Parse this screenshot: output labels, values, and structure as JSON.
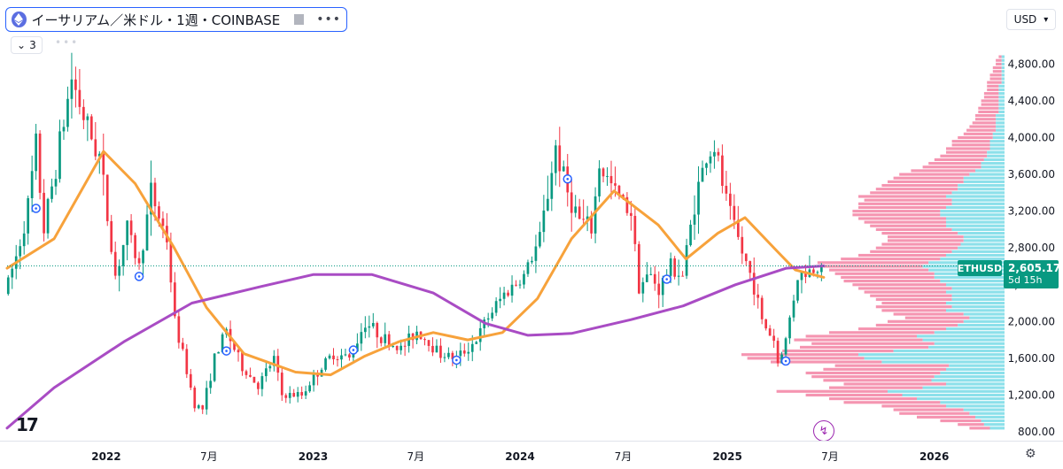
{
  "header": {
    "symbol_title": "イーサリアム／米ドル・1週・COINBASE",
    "indicator_count": "3",
    "currency": "USD"
  },
  "price_tag": {
    "symbol": "ETHUSD",
    "price": "2,605.17",
    "countdown": "5d 15h"
  },
  "colors": {
    "up": "#089981",
    "down": "#f23645",
    "ma_short": "#f7a23b",
    "ma_long": "#a94cc4",
    "vp_up": "#7fdde8",
    "vp_down": "#f48aa8",
    "accent": "#2962ff"
  },
  "chart_data": {
    "type": "candlestick",
    "interval": "1 week",
    "x_tick_labels": [
      "2022",
      "7月",
      "2023",
      "7月",
      "2024",
      "7月",
      "2025",
      "7月",
      "2026"
    ],
    "y_tick_labels": [
      "800.00",
      "1,200.00",
      "1,600.00",
      "2,000.00",
      "2,400.00",
      "2,800.00",
      "3,200.00",
      "3,600.00",
      "4,000.00",
      "4,400.00",
      "4,800.00"
    ],
    "ylim": [
      800,
      4900
    ],
    "xlim": [
      "2021-07-10",
      "2026-05-05"
    ],
    "grid": false,
    "last_price": 2605.17,
    "price_anchors": [
      [
        "2021-07-12",
        2300
      ],
      [
        "2021-08-02",
        2700
      ],
      [
        "2021-08-23",
        3250
      ],
      [
        "2021-09-06",
        3900
      ],
      [
        "2021-09-20",
        3000
      ],
      [
        "2021-10-11",
        3700
      ],
      [
        "2021-11-08",
        4650
      ],
      [
        "2021-12-06",
        4100
      ],
      [
        "2021-12-27",
        3800
      ],
      [
        "2022-01-24",
        2500
      ],
      [
        "2022-02-14",
        3000
      ],
      [
        "2022-03-07",
        2600
      ],
      [
        "2022-03-28",
        3400
      ],
      [
        "2022-04-25",
        2900
      ],
      [
        "2022-05-09",
        2000
      ],
      [
        "2022-06-13",
        1100
      ],
      [
        "2022-06-27",
        1050
      ],
      [
        "2022-07-18",
        1600
      ],
      [
        "2022-08-08",
        1900
      ],
      [
        "2022-09-05",
        1500
      ],
      [
        "2022-10-03",
        1300
      ],
      [
        "2022-10-31",
        1600
      ],
      [
        "2022-11-14",
        1200
      ],
      [
        "2022-12-19",
        1200
      ],
      [
        "2023-01-09",
        1400
      ],
      [
        "2023-02-13",
        1650
      ],
      [
        "2023-03-13",
        1600
      ],
      [
        "2023-04-10",
        2000
      ],
      [
        "2023-05-15",
        1800
      ],
      [
        "2023-06-12",
        1700
      ],
      [
        "2023-07-10",
        1900
      ],
      [
        "2023-08-21",
        1650
      ],
      [
        "2023-09-18",
        1600
      ],
      [
        "2023-10-23",
        1800
      ],
      [
        "2023-11-13",
        2050
      ],
      [
        "2023-12-11",
        2300
      ],
      [
        "2024-01-15",
        2500
      ],
      [
        "2024-02-12",
        2900
      ],
      [
        "2024-03-11",
        3900
      ],
      [
        "2024-04-01",
        3400
      ],
      [
        "2024-04-22",
        3100
      ],
      [
        "2024-05-13",
        3000
      ],
      [
        "2024-05-27",
        3700
      ],
      [
        "2024-06-24",
        3400
      ],
      [
        "2024-07-22",
        3200
      ],
      [
        "2024-08-05",
        2400
      ],
      [
        "2024-08-26",
        2500
      ],
      [
        "2024-09-09",
        2350
      ],
      [
        "2024-09-30",
        2600
      ],
      [
        "2024-10-21",
        2500
      ],
      [
        "2024-11-11",
        3300
      ],
      [
        "2024-12-02",
        3800
      ],
      [
        "2024-12-16",
        3900
      ],
      [
        "2025-01-06",
        3300
      ],
      [
        "2025-02-03",
        2750
      ],
      [
        "2025-02-24",
        2400
      ],
      [
        "2025-03-10",
        2000
      ],
      [
        "2025-03-31",
        1800
      ],
      [
        "2025-04-07",
        1550
      ],
      [
        "2025-04-21",
        1800
      ],
      [
        "2025-05-12",
        2500
      ],
      [
        "2025-06-02",
        2550
      ],
      [
        "2025-06-16",
        2605
      ]
    ],
    "series": [
      {
        "type": "line",
        "points": [
          [
            "2021-07-10",
            2580
          ],
          [
            "2021-10-01",
            2900
          ],
          [
            "2021-12-27",
            3850
          ],
          [
            "2022-02-21",
            3500
          ],
          [
            "2022-05-01",
            2800
          ],
          [
            "2022-06-27",
            2150
          ],
          [
            "2022-09-01",
            1650
          ],
          [
            "2022-12-01",
            1450
          ],
          [
            "2023-02-01",
            1420
          ],
          [
            "2023-04-01",
            1620
          ],
          [
            "2023-06-01",
            1780
          ],
          [
            "2023-08-01",
            1880
          ],
          [
            "2023-10-01",
            1800
          ],
          [
            "2023-12-01",
            1880
          ],
          [
            "2024-02-01",
            2250
          ],
          [
            "2024-04-01",
            2900
          ],
          [
            "2024-06-15",
            3420
          ],
          [
            "2024-09-01",
            3050
          ],
          [
            "2024-10-20",
            2680
          ],
          [
            "2024-12-15",
            2960
          ],
          [
            "2025-02-01",
            3130
          ],
          [
            "2025-04-01",
            2750
          ],
          [
            "2025-05-01",
            2560
          ],
          [
            "2025-06-20",
            2480
          ]
        ]
      },
      {
        "type": "line",
        "points": [
          [
            "2021-07-10",
            840
          ],
          [
            "2021-10-01",
            1280
          ],
          [
            "2022-02-01",
            1780
          ],
          [
            "2022-06-01",
            2200
          ],
          [
            "2022-10-01",
            2380
          ],
          [
            "2023-01-01",
            2510
          ],
          [
            "2023-04-15",
            2510
          ],
          [
            "2023-08-01",
            2310
          ],
          [
            "2023-11-01",
            1980
          ],
          [
            "2024-01-15",
            1850
          ],
          [
            "2024-04-01",
            1870
          ],
          [
            "2024-07-15",
            2020
          ],
          [
            "2024-10-15",
            2170
          ],
          [
            "2025-01-15",
            2400
          ],
          [
            "2025-04-15",
            2580
          ],
          [
            "2025-06-20",
            2605
          ]
        ]
      }
    ],
    "volume_profile": {
      "ylim": [
        800,
        4900
      ],
      "bins": [
        [
          820,
          0.12,
          0.05
        ],
        [
          860,
          0.16,
          0.07
        ],
        [
          900,
          0.22,
          0.08
        ],
        [
          940,
          0.3,
          0.1
        ],
        [
          980,
          0.36,
          0.12
        ],
        [
          1020,
          0.38,
          0.14
        ],
        [
          1060,
          0.42,
          0.2
        ],
        [
          1100,
          0.55,
          0.22
        ],
        [
          1140,
          0.6,
          0.3
        ],
        [
          1180,
          0.68,
          0.35
        ],
        [
          1220,
          0.78,
          0.4
        ],
        [
          1260,
          0.6,
          0.28
        ],
        [
          1300,
          0.55,
          0.2
        ],
        [
          1340,
          0.62,
          0.25
        ],
        [
          1380,
          0.66,
          0.24
        ],
        [
          1420,
          0.68,
          0.22
        ],
        [
          1460,
          0.62,
          0.2
        ],
        [
          1500,
          0.58,
          0.19
        ],
        [
          1540,
          0.8,
          0.42
        ],
        [
          1580,
          0.88,
          0.48
        ],
        [
          1620,
          0.9,
          0.5
        ],
        [
          1660,
          0.76,
          0.38
        ],
        [
          1700,
          0.7,
          0.26
        ],
        [
          1740,
          0.66,
          0.24
        ],
        [
          1780,
          0.72,
          0.28
        ],
        [
          1820,
          0.68,
          0.3
        ],
        [
          1860,
          0.6,
          0.24
        ],
        [
          1900,
          0.5,
          0.2
        ],
        [
          1940,
          0.44,
          0.16
        ],
        [
          1980,
          0.4,
          0.14
        ],
        [
          2020,
          0.34,
          0.12
        ],
        [
          2060,
          0.38,
          0.14
        ],
        [
          2100,
          0.42,
          0.2
        ],
        [
          2140,
          0.44,
          0.18
        ],
        [
          2180,
          0.42,
          0.2
        ],
        [
          2220,
          0.44,
          0.18
        ],
        [
          2260,
          0.46,
          0.18
        ],
        [
          2300,
          0.48,
          0.2
        ],
        [
          2340,
          0.5,
          0.18
        ],
        [
          2380,
          0.52,
          0.2
        ],
        [
          2420,
          0.55,
          0.22
        ],
        [
          2460,
          0.56,
          0.24
        ],
        [
          2500,
          0.58,
          0.24
        ],
        [
          2540,
          0.6,
          0.26
        ],
        [
          2580,
          0.62,
          0.28
        ],
        [
          2620,
          0.64,
          0.26
        ],
        [
          2660,
          0.56,
          0.22
        ],
        [
          2700,
          0.5,
          0.2
        ],
        [
          2740,
          0.46,
          0.18
        ],
        [
          2780,
          0.44,
          0.16
        ],
        [
          2820,
          0.42,
          0.15
        ],
        [
          2860,
          0.4,
          0.14
        ],
        [
          2900,
          0.4,
          0.14
        ],
        [
          2940,
          0.42,
          0.16
        ],
        [
          2980,
          0.44,
          0.18
        ],
        [
          3020,
          0.46,
          0.2
        ],
        [
          3060,
          0.48,
          0.2
        ],
        [
          3100,
          0.5,
          0.2
        ],
        [
          3140,
          0.52,
          0.22
        ],
        [
          3180,
          0.52,
          0.22
        ],
        [
          3220,
          0.5,
          0.2
        ],
        [
          3260,
          0.5,
          0.18
        ],
        [
          3300,
          0.48,
          0.18
        ],
        [
          3340,
          0.5,
          0.2
        ],
        [
          3380,
          0.46,
          0.18
        ],
        [
          3420,
          0.44,
          0.16
        ],
        [
          3460,
          0.42,
          0.16
        ],
        [
          3500,
          0.4,
          0.14
        ],
        [
          3540,
          0.38,
          0.14
        ],
        [
          3580,
          0.36,
          0.12
        ],
        [
          3620,
          0.32,
          0.1
        ],
        [
          3660,
          0.28,
          0.08
        ],
        [
          3700,
          0.26,
          0.08
        ],
        [
          3740,
          0.24,
          0.07
        ],
        [
          3780,
          0.22,
          0.06
        ],
        [
          3820,
          0.2,
          0.06
        ],
        [
          3860,
          0.2,
          0.05
        ],
        [
          3900,
          0.18,
          0.05
        ],
        [
          3940,
          0.18,
          0.05
        ],
        [
          3980,
          0.16,
          0.04
        ],
        [
          4020,
          0.14,
          0.04
        ],
        [
          4060,
          0.13,
          0.03
        ],
        [
          4100,
          0.12,
          0.03
        ],
        [
          4140,
          0.11,
          0.03
        ],
        [
          4180,
          0.1,
          0.03
        ],
        [
          4220,
          0.1,
          0.03
        ],
        [
          4260,
          0.09,
          0.02
        ],
        [
          4300,
          0.09,
          0.02
        ],
        [
          4340,
          0.08,
          0.02
        ],
        [
          4380,
          0.08,
          0.02
        ],
        [
          4420,
          0.07,
          0.02
        ],
        [
          4460,
          0.07,
          0.02
        ],
        [
          4500,
          0.06,
          0.02
        ],
        [
          4540,
          0.06,
          0.02
        ],
        [
          4580,
          0.06,
          0.01
        ],
        [
          4620,
          0.05,
          0.01
        ],
        [
          4660,
          0.05,
          0.01
        ],
        [
          4700,
          0.04,
          0.01
        ],
        [
          4740,
          0.04,
          0.01
        ],
        [
          4780,
          0.03,
          0.01
        ],
        [
          4820,
          0.03,
          0.01
        ],
        [
          4860,
          0.02,
          0.01
        ]
      ]
    },
    "event_markers": [
      [
        "2021-08-30",
        3230
      ],
      [
        "2022-02-28",
        2490
      ],
      [
        "2022-08-01",
        1680
      ],
      [
        "2023-03-13",
        1690
      ],
      [
        "2023-09-11",
        1580
      ],
      [
        "2024-03-25",
        3550
      ],
      [
        "2024-09-16",
        2460
      ],
      [
        "2025-04-14",
        1570
      ]
    ]
  }
}
